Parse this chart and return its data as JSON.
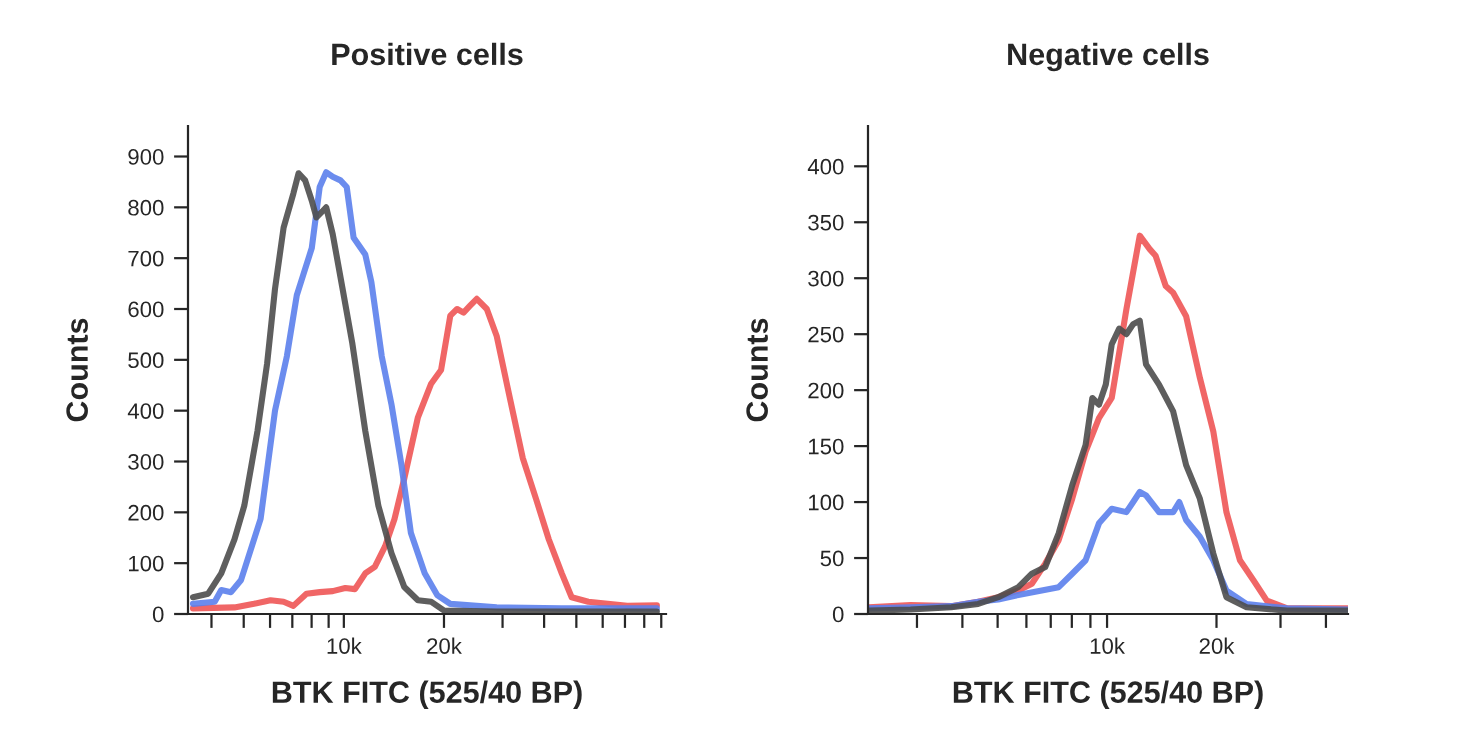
{
  "chart_data": [
    {
      "type": "line",
      "title": "Positive cells",
      "xlabel": "BTK FITC (525/40 BP)",
      "ylabel": "Counts",
      "log": "x",
      "grid": false,
      "marker": "none",
      "line_style": "solid",
      "xlim": [
        3400,
        93000
      ],
      "ylim": [
        0,
        960
      ],
      "xticks": [
        {
          "value": 4000,
          "label": null
        },
        {
          "value": 5000,
          "label": null
        },
        {
          "value": 6000,
          "label": null
        },
        {
          "value": 7000,
          "label": null
        },
        {
          "value": 8000,
          "label": null
        },
        {
          "value": 9000,
          "label": null
        },
        {
          "value": 10000,
          "label": "10k"
        },
        {
          "value": 20000,
          "label": "20k"
        },
        {
          "value": 30000,
          "label": null
        },
        {
          "value": 40000,
          "label": null
        },
        {
          "value": 50000,
          "label": null
        },
        {
          "value": 60000,
          "label": null
        },
        {
          "value": 70000,
          "label": null
        },
        {
          "value": 80000,
          "label": null
        },
        {
          "value": 90000,
          "label": null
        }
      ],
      "yticks": [
        0,
        100,
        200,
        300,
        400,
        500,
        600,
        700,
        800,
        900
      ],
      "series": [
        {
          "color": "#ee5555",
          "x": [
            3520,
            4690,
            5370,
            6020,
            6590,
            7050,
            7720,
            8460,
            9260,
            10100,
            10800,
            11600,
            12400,
            13300,
            14200,
            15200,
            16700,
            18300,
            19600,
            20900,
            21900,
            22900,
            24000,
            25100,
            26900,
            28800,
            31500,
            34500,
            37800,
            41300,
            45200,
            48400,
            54300,
            71100,
            87300
          ],
          "values": [
            11,
            13,
            20,
            27,
            24,
            16,
            40,
            43,
            45,
            51,
            49,
            80,
            93,
            133,
            187,
            267,
            387,
            453,
            480,
            587,
            600,
            593,
            607,
            620,
            600,
            547,
            427,
            307,
            227,
            147,
            80,
            33,
            24,
            16,
            17
          ]
        },
        {
          "color": "#5b7fec",
          "x": [
            3520,
            4090,
            4280,
            4580,
            4910,
            5620,
            6210,
            6740,
            7220,
            7550,
            8010,
            8460,
            8850,
            9260,
            9770,
            10200,
            10700,
            11600,
            12100,
            13000,
            13900,
            14900,
            15900,
            17500,
            19100,
            20900,
            28800,
            45200,
            87300
          ],
          "values": [
            20,
            24,
            47,
            43,
            67,
            187,
            400,
            507,
            627,
            667,
            720,
            840,
            869,
            860,
            853,
            840,
            740,
            707,
            653,
            507,
            413,
            293,
            160,
            80,
            37,
            20,
            13,
            11,
            11
          ]
        },
        {
          "color": "#4d4d4d",
          "x": [
            3520,
            3910,
            4280,
            4690,
            5020,
            5500,
            5880,
            6210,
            6590,
            7050,
            7310,
            7650,
            8010,
            8270,
            8850,
            9260,
            9910,
            10600,
            11600,
            12700,
            13900,
            15200,
            16700,
            18300,
            20000,
            28800,
            45200,
            87300
          ],
          "values": [
            33,
            40,
            80,
            147,
            213,
            360,
            493,
            640,
            760,
            827,
            867,
            853,
            813,
            780,
            800,
            747,
            640,
            533,
            360,
            213,
            120,
            53,
            27,
            24,
            7,
            5,
            5,
            5
          ]
        }
      ]
    },
    {
      "type": "line",
      "title": "Negative cells",
      "xlabel": "BTK FITC (525/40 BP)",
      "ylabel": "Counts",
      "log": "x",
      "grid": false,
      "marker": "none",
      "line_style": "solid",
      "xlim": [
        2200,
        46000
      ],
      "ylim": [
        0,
        436
      ],
      "xticks": [
        {
          "value": 3000,
          "label": null
        },
        {
          "value": 4000,
          "label": null
        },
        {
          "value": 5000,
          "label": null
        },
        {
          "value": 6000,
          "label": null
        },
        {
          "value": 7000,
          "label": null
        },
        {
          "value": 8000,
          "label": null
        },
        {
          "value": 9000,
          "label": null
        },
        {
          "value": 10000,
          "label": "10k"
        },
        {
          "value": 20000,
          "label": "20k"
        },
        {
          "value": 30000,
          "label": null
        },
        {
          "value": 40000,
          "label": null
        }
      ],
      "yticks": [
        0,
        50,
        100,
        150,
        200,
        250,
        300,
        350,
        400
      ],
      "series": [
        {
          "color": "#ee5555",
          "x": [
            2210,
            2880,
            3730,
            4420,
            5020,
            5700,
            6210,
            6760,
            7360,
            8020,
            8730,
            9500,
            10300,
            11300,
            12300,
            13100,
            13600,
            14500,
            15200,
            16500,
            18000,
            19600,
            21300,
            23200,
            25300,
            27500,
            31300,
            37100,
            45900
          ],
          "values": [
            6,
            8,
            7,
            11,
            15,
            21,
            27,
            45,
            66,
            103,
            145,
            175,
            193,
            272,
            338,
            326,
            320,
            293,
            287,
            266,
            211,
            163,
            91,
            48,
            30,
            12,
            5,
            5,
            5
          ]
        },
        {
          "color": "#5b7fec",
          "x": [
            2210,
            2880,
            3730,
            4420,
            5020,
            5700,
            7360,
            8020,
            8730,
            9500,
            10300,
            11300,
            11800,
            12300,
            12800,
            13900,
            15200,
            15800,
            16500,
            18000,
            19600,
            21300,
            24200,
            31300,
            45900
          ],
          "values": [
            5,
            6,
            7,
            11,
            13,
            17,
            24,
            36,
            48,
            81,
            94,
            91,
            100,
            109,
            106,
            91,
            91,
            100,
            84,
            69,
            48,
            21,
            9,
            5,
            4
          ]
        },
        {
          "color": "#4d4d4d",
          "x": [
            2210,
            2880,
            3730,
            4420,
            5020,
            5700,
            6210,
            6760,
            7360,
            8020,
            8730,
            9110,
            9500,
            9920,
            10300,
            10800,
            11300,
            11800,
            12300,
            12800,
            13900,
            15200,
            16500,
            18000,
            19600,
            21300,
            24200,
            31300,
            45900
          ],
          "values": [
            3,
            4,
            6,
            9,
            15,
            24,
            36,
            42,
            72,
            115,
            151,
            193,
            187,
            205,
            241,
            255,
            250,
            259,
            262,
            223,
            205,
            181,
            133,
            103,
            54,
            15,
            6,
            3,
            3
          ]
        }
      ]
    }
  ]
}
